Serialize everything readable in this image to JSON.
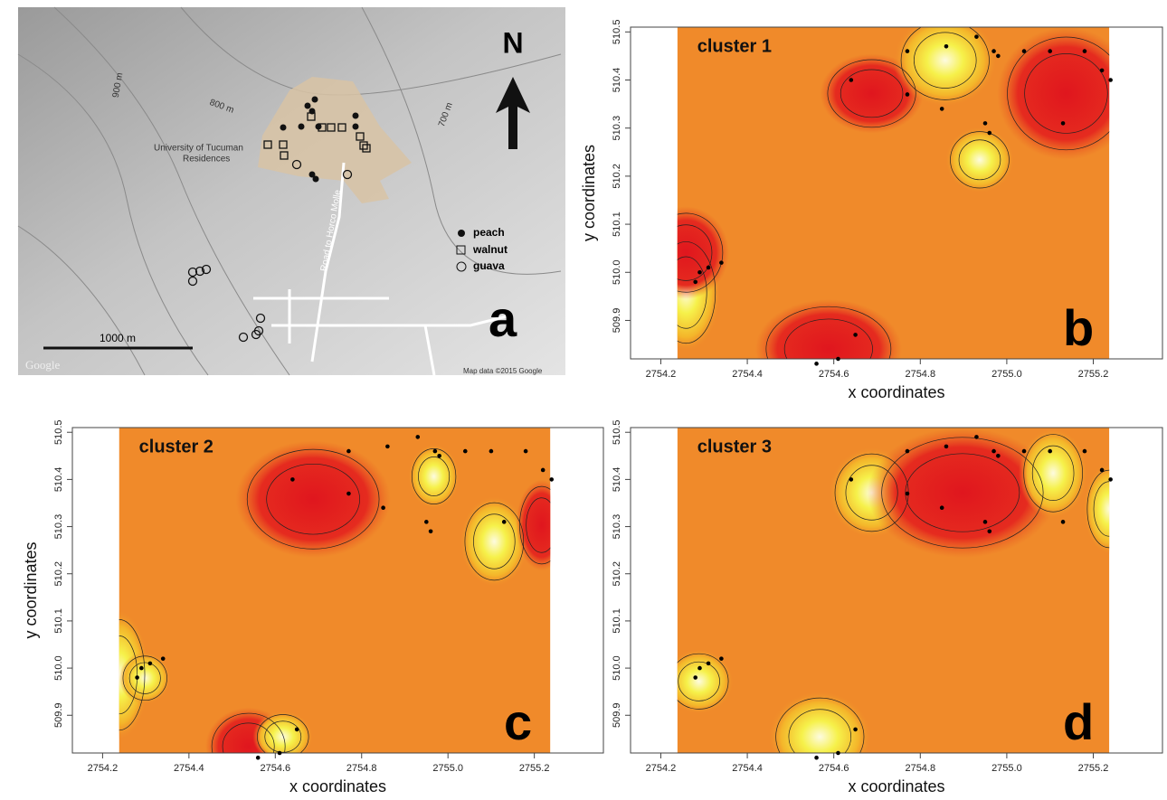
{
  "map_panel": {
    "panel_label": "a",
    "north": "N",
    "contours": [
      "900 m",
      "800 m",
      "700 m"
    ],
    "place": [
      "University of Tucuman",
      "Residences"
    ],
    "road": "Road to Horco Molle",
    "legend": [
      "peach",
      "walnut",
      "guava"
    ],
    "scale": "1000 m",
    "brand": "Google",
    "credit": "Map data ©2015 Google"
  },
  "chart_data": [
    {
      "type": "heatmap",
      "title": "cluster 1",
      "panel_label": "b",
      "xlabel": "x coordinates",
      "ylabel": "y coordinates",
      "xlim": [
        2754.13,
        2755.36
      ],
      "ylim": [
        509.82,
        510.51
      ],
      "xticks": [
        2754.2,
        2754.4,
        2754.6,
        2754.8,
        {
          "value": 2755,
          "label": "2755.0"
        },
        2755.2
      ],
      "yticks": [
        509.9,
        {
          "value": 510,
          "label": "510.0"
        },
        510.1,
        510.2,
        510.3,
        510.4,
        510.5
      ],
      "x": [
        2754.64,
        2754.77,
        2754.77,
        2754.86,
        2754.93,
        2754.97,
        2754.98,
        2755.04,
        2755.1,
        2755.18,
        2755.22,
        2755.24,
        2755.13,
        2754.95,
        2754.96,
        2754.85,
        2754.29,
        2754.31,
        2754.34,
        2754.28,
        2754.56,
        2754.61,
        2754.65
      ],
      "y": [
        510.4,
        510.37,
        510.46,
        510.47,
        510.49,
        510.46,
        510.45,
        510.46,
        510.46,
        510.46,
        510.42,
        510.4,
        510.31,
        510.31,
        510.29,
        510.34,
        510.0,
        510.01,
        510.02,
        509.98,
        509.81,
        509.82,
        509.87
      ]
    },
    {
      "type": "heatmap",
      "title": "cluster 2",
      "panel_label": "c",
      "xlabel": "x coordinates",
      "ylabel": "y coordinates",
      "xlim": [
        2754.13,
        2755.36
      ],
      "ylim": [
        509.82,
        510.51
      ],
      "xticks": [
        2754.2,
        2754.4,
        2754.6,
        2754.8,
        {
          "value": 2755,
          "label": "2755.0"
        },
        2755.2
      ],
      "yticks": [
        509.9,
        {
          "value": 510,
          "label": "510.0"
        },
        510.1,
        510.2,
        510.3,
        510.4,
        510.5
      ],
      "x": [
        2754.64,
        2754.77,
        2754.77,
        2754.86,
        2754.93,
        2754.97,
        2754.98,
        2755.04,
        2755.1,
        2755.18,
        2755.22,
        2755.24,
        2755.13,
        2754.95,
        2754.96,
        2754.85,
        2754.29,
        2754.31,
        2754.34,
        2754.28,
        2754.56,
        2754.61,
        2754.65
      ],
      "y": [
        510.4,
        510.37,
        510.46,
        510.47,
        510.49,
        510.46,
        510.45,
        510.46,
        510.46,
        510.46,
        510.42,
        510.4,
        510.31,
        510.31,
        510.29,
        510.34,
        510.0,
        510.01,
        510.02,
        509.98,
        509.81,
        509.82,
        509.87
      ]
    },
    {
      "type": "heatmap",
      "title": "cluster 3",
      "panel_label": "d",
      "xlabel": "x coordinates",
      "xlim": [
        2754.13,
        2755.36
      ],
      "ylim": [
        509.82,
        510.51
      ],
      "xticks": [
        2754.2,
        2754.4,
        2754.6,
        2754.8,
        {
          "value": 2755,
          "label": "2755.0"
        },
        2755.2
      ],
      "yticks": [
        509.9,
        {
          "value": 510,
          "label": "510.0"
        },
        510.1,
        510.2,
        510.3,
        510.4,
        510.5
      ],
      "x": [
        2754.64,
        2754.77,
        2754.77,
        2754.86,
        2754.93,
        2754.97,
        2754.98,
        2755.04,
        2755.1,
        2755.18,
        2755.22,
        2755.24,
        2755.13,
        2754.95,
        2754.96,
        2754.85,
        2754.29,
        2754.31,
        2754.34,
        2754.28,
        2754.56,
        2754.61,
        2754.65
      ],
      "y": [
        510.4,
        510.37,
        510.46,
        510.47,
        510.49,
        510.46,
        510.45,
        510.46,
        510.46,
        510.46,
        510.42,
        510.4,
        510.31,
        510.31,
        510.29,
        510.34,
        510.0,
        510.01,
        510.02,
        509.98,
        509.81,
        509.82,
        509.87
      ]
    }
  ]
}
